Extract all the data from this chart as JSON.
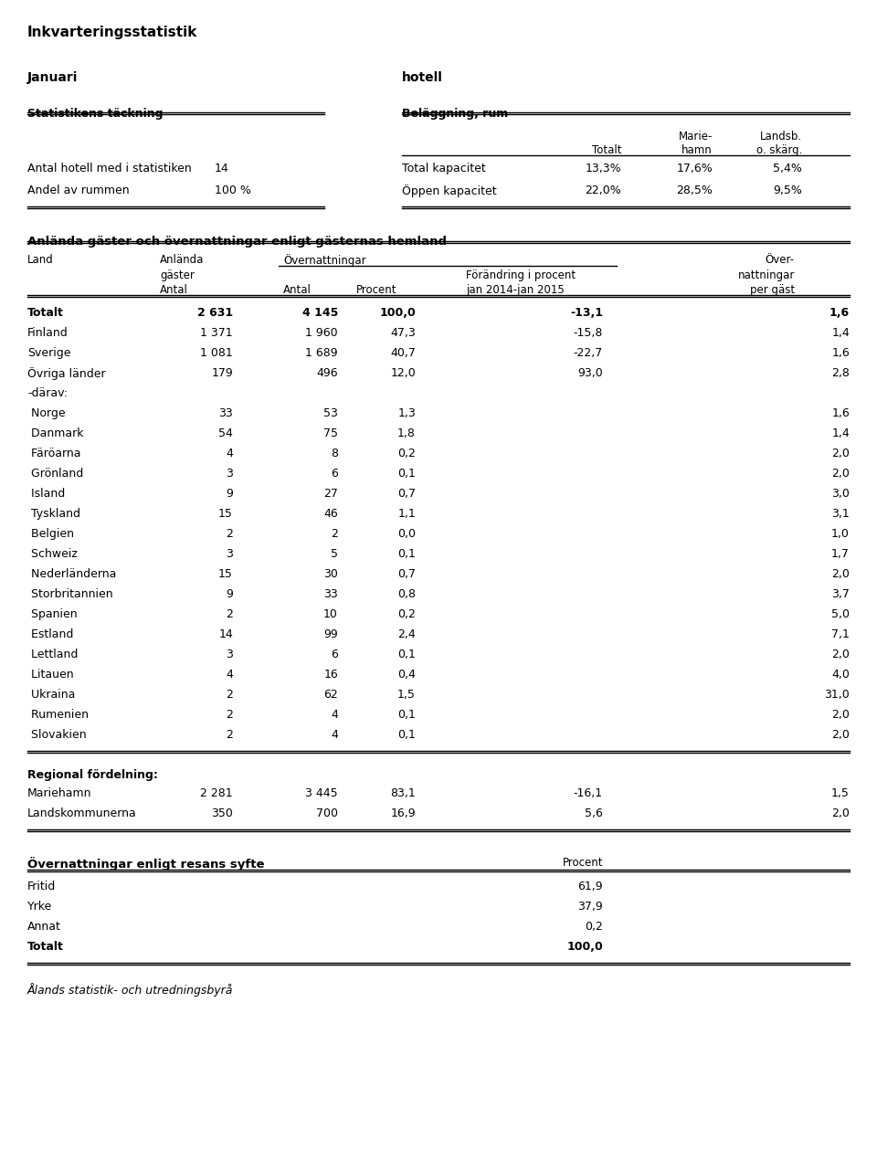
{
  "title": "Inkvarteringsstatistik",
  "subtitle_left": "Januari",
  "subtitle_right": "hotell",
  "section1_left_title": "Statistikens täckning",
  "section1_right_title": "Beläggning, rum",
  "belaggning_rows": [
    [
      "Total kapacitet",
      "13,3%",
      "17,6%",
      "5,4%"
    ],
    [
      "Öppen kapacitet",
      "22,0%",
      "28,5%",
      "9,5%"
    ]
  ],
  "table2_title": "Anlända gäster och övernattningar enligt gästernas hemland",
  "table2_rows": [
    {
      "land": "Totalt",
      "antal_gaster": "2 631",
      "antal_natt": "4 145",
      "procent": "100,0",
      "forandring": "-13,1",
      "per_gast": "1,6",
      "bold": true
    },
    {
      "land": "Finland",
      "antal_gaster": "1 371",
      "antal_natt": "1 960",
      "procent": "47,3",
      "forandring": "-15,8",
      "per_gast": "1,4",
      "bold": false
    },
    {
      "land": "Sverige",
      "antal_gaster": "1 081",
      "antal_natt": "1 689",
      "procent": "40,7",
      "forandring": "-22,7",
      "per_gast": "1,6",
      "bold": false
    },
    {
      "land": "Övriga länder",
      "antal_gaster": "179",
      "antal_natt": "496",
      "procent": "12,0",
      "forandring": "93,0",
      "per_gast": "2,8",
      "bold": false
    },
    {
      "land": "-därav:",
      "antal_gaster": "",
      "antal_natt": "",
      "procent": "",
      "forandring": "",
      "per_gast": "",
      "bold": false
    },
    {
      "land": " Norge",
      "antal_gaster": "33",
      "antal_natt": "53",
      "procent": "1,3",
      "forandring": "",
      "per_gast": "1,6",
      "bold": false
    },
    {
      "land": " Danmark",
      "antal_gaster": "54",
      "antal_natt": "75",
      "procent": "1,8",
      "forandring": "",
      "per_gast": "1,4",
      "bold": false
    },
    {
      "land": " Färöarna",
      "antal_gaster": "4",
      "antal_natt": "8",
      "procent": "0,2",
      "forandring": "",
      "per_gast": "2,0",
      "bold": false
    },
    {
      "land": " Grönland",
      "antal_gaster": "3",
      "antal_natt": "6",
      "procent": "0,1",
      "forandring": "",
      "per_gast": "2,0",
      "bold": false
    },
    {
      "land": " Island",
      "antal_gaster": "9",
      "antal_natt": "27",
      "procent": "0,7",
      "forandring": "",
      "per_gast": "3,0",
      "bold": false
    },
    {
      "land": " Tyskland",
      "antal_gaster": "15",
      "antal_natt": "46",
      "procent": "1,1",
      "forandring": "",
      "per_gast": "3,1",
      "bold": false
    },
    {
      "land": " Belgien",
      "antal_gaster": "2",
      "antal_natt": "2",
      "procent": "0,0",
      "forandring": "",
      "per_gast": "1,0",
      "bold": false
    },
    {
      "land": " Schweiz",
      "antal_gaster": "3",
      "antal_natt": "5",
      "procent": "0,1",
      "forandring": "",
      "per_gast": "1,7",
      "bold": false
    },
    {
      "land": " Nederländerna",
      "antal_gaster": "15",
      "antal_natt": "30",
      "procent": "0,7",
      "forandring": "",
      "per_gast": "2,0",
      "bold": false
    },
    {
      "land": " Storbritannien",
      "antal_gaster": "9",
      "antal_natt": "33",
      "procent": "0,8",
      "forandring": "",
      "per_gast": "3,7",
      "bold": false
    },
    {
      "land": " Spanien",
      "antal_gaster": "2",
      "antal_natt": "10",
      "procent": "0,2",
      "forandring": "",
      "per_gast": "5,0",
      "bold": false
    },
    {
      "land": " Estland",
      "antal_gaster": "14",
      "antal_natt": "99",
      "procent": "2,4",
      "forandring": "",
      "per_gast": "7,1",
      "bold": false
    },
    {
      "land": " Lettland",
      "antal_gaster": "3",
      "antal_natt": "6",
      "procent": "0,1",
      "forandring": "",
      "per_gast": "2,0",
      "bold": false
    },
    {
      "land": " Litauen",
      "antal_gaster": "4",
      "antal_natt": "16",
      "procent": "0,4",
      "forandring": "",
      "per_gast": "4,0",
      "bold": false
    },
    {
      "land": " Ukraina",
      "antal_gaster": "2",
      "antal_natt": "62",
      "procent": "1,5",
      "forandring": "",
      "per_gast": "31,0",
      "bold": false
    },
    {
      "land": " Rumenien",
      "antal_gaster": "2",
      "antal_natt": "4",
      "procent": "0,1",
      "forandring": "",
      "per_gast": "2,0",
      "bold": false
    },
    {
      "land": " Slovakien",
      "antal_gaster": "2",
      "antal_natt": "4",
      "procent": "0,1",
      "forandring": "",
      "per_gast": "2,0",
      "bold": false
    }
  ],
  "regional_rows": [
    {
      "land": "Mariehamn",
      "antal_gaster": "2 281",
      "antal_natt": "3 445",
      "procent": "83,1",
      "forandring": "-16,1",
      "per_gast": "1,5"
    },
    {
      "land": "Landskommunerna",
      "antal_gaster": "350",
      "antal_natt": "700",
      "procent": "16,9",
      "forandring": "5,6",
      "per_gast": "2,0"
    }
  ],
  "section3_title": "Övernattningar enligt resans syfte",
  "section3_rows": [
    {
      "label": "Fritid",
      "value": "61,9",
      "bold": false
    },
    {
      "label": "Yrke",
      "value": "37,9",
      "bold": false
    },
    {
      "label": "Annat",
      "value": "0,2",
      "bold": false
    },
    {
      "label": "Totalt",
      "value": "100,0",
      "bold": true
    }
  ],
  "footer": "Ålands statistik- och utredningsbyrå"
}
